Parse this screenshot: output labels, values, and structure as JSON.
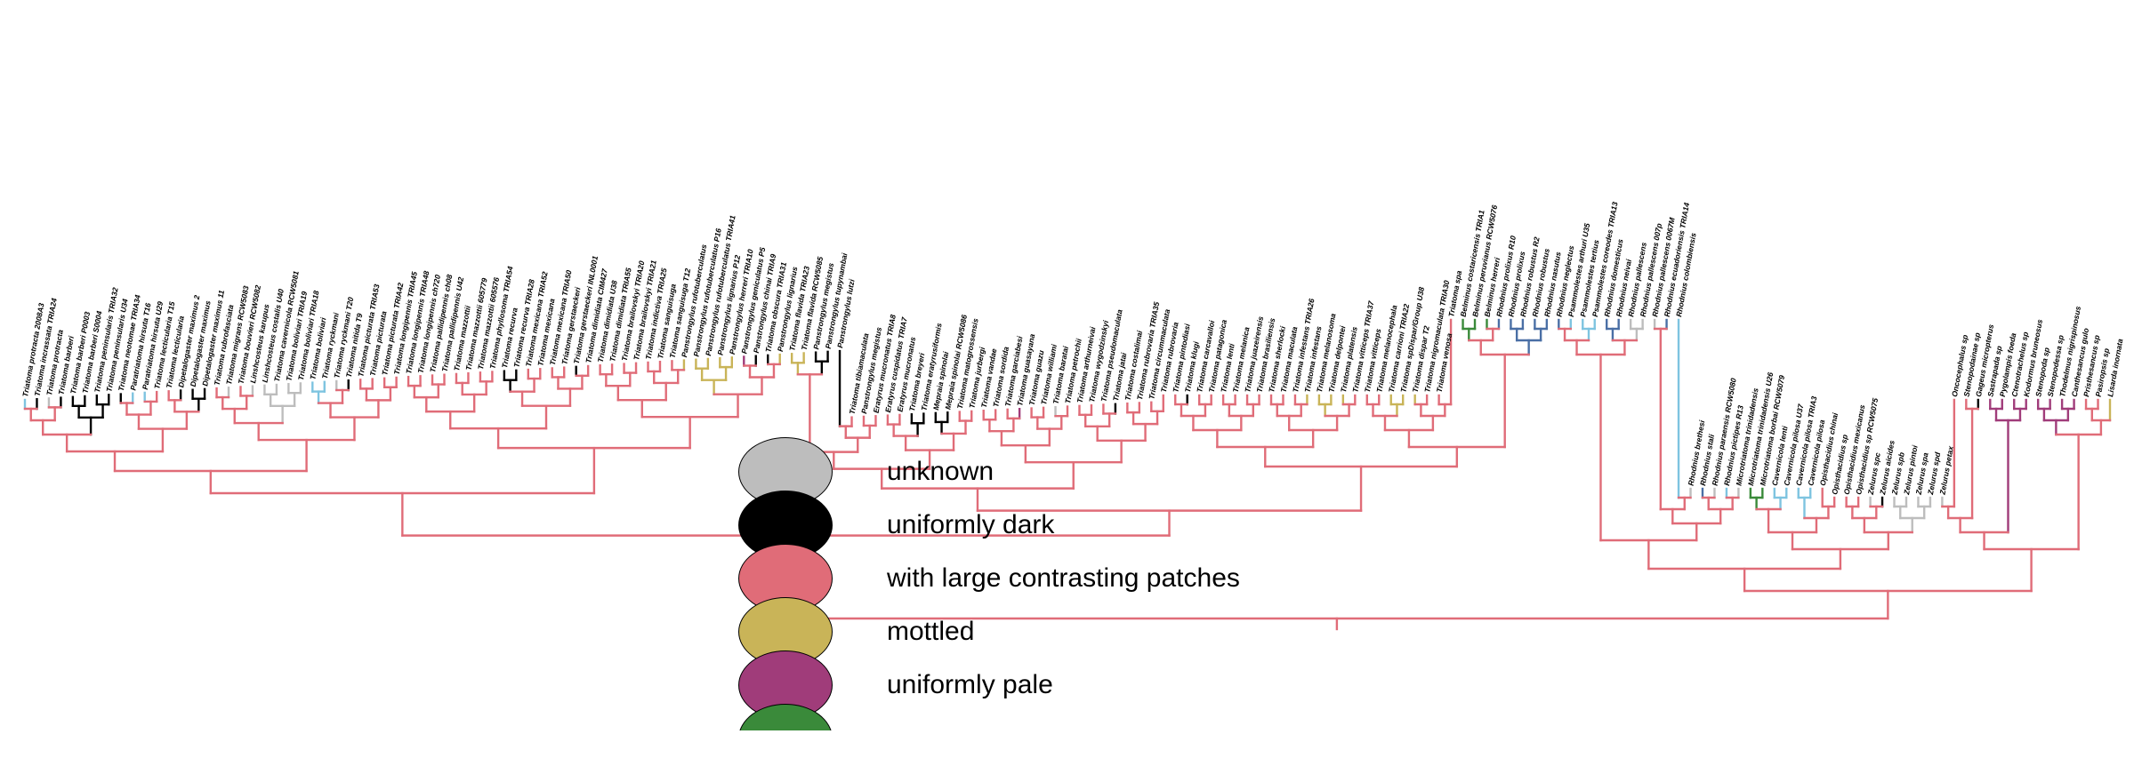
{
  "colors": {
    "unknown": "#bdbdbd",
    "dark": "#000000",
    "patches": "#e06c78",
    "mottled": "#c9b458",
    "pale": "#a03c7a",
    "green": "#3a8a3a",
    "blue": "#4a6fa5",
    "lightblue": "#7ec4e0"
  },
  "legend": [
    {
      "label": "unknown",
      "color": "#bdbdbd"
    },
    {
      "label": "uniformly dark",
      "color": "#000000"
    },
    {
      "label": "with large contrasting patches",
      "color": "#e06c78"
    },
    {
      "label": "mottled",
      "color": "#c9b458"
    },
    {
      "label": "uniformly pale",
      "color": "#a03c7a"
    },
    {
      "label": "",
      "color": "#3a8a3a"
    }
  ],
  "tips": [
    {
      "label": "Triatoma protracta 2008A3",
      "color": "lightblue"
    },
    {
      "label": "Triatoma incrassata TRIA24",
      "color": "dark"
    },
    {
      "label": "Triatoma protracta",
      "color": "unknown"
    },
    {
      "label": "Triatoma barberi",
      "color": "dark"
    },
    {
      "label": "Triatoma barberi P0003",
      "color": "dark"
    },
    {
      "label": "Triatoma barberi S0004",
      "color": "dark"
    },
    {
      "label": "Triatoma peninsularis TRIA32",
      "color": "dark"
    },
    {
      "label": "Triatoma peninsularis U34",
      "color": "dark"
    },
    {
      "label": "Triatoma neotomae TRIA34",
      "color": "dark"
    },
    {
      "label": "Paratriatoma hirsuta T16",
      "color": "lightblue"
    },
    {
      "label": "Paratriatoma hirsuta U29",
      "color": "lightblue"
    },
    {
      "label": "Triatoma lecticularia T15",
      "color": "patches"
    },
    {
      "label": "Triatoma lecticularia",
      "color": "patches"
    },
    {
      "label": "Dipetalogaster maximus 2",
      "color": "dark"
    },
    {
      "label": "Dipetalogaster maximus",
      "color": "dark"
    },
    {
      "label": "Dipetalogaster maximus 11",
      "color": "dark"
    },
    {
      "label": "Triatoma rubrofasciata",
      "color": "patches"
    },
    {
      "label": "Triatoma migrans RCW5083",
      "color": "unknown"
    },
    {
      "label": "Triatoma bouvieri RCW5082",
      "color": "patches"
    },
    {
      "label": "Linshcosteus karupus",
      "color": "unknown"
    },
    {
      "label": "Linshcosteus costalis U40",
      "color": "unknown"
    },
    {
      "label": "Triatoma cavernicola RCW5081",
      "color": "unknown"
    },
    {
      "label": "Triatoma boliviari TRIA19",
      "color": "unknown"
    },
    {
      "label": "Triatoma boliviari TRIA18",
      "color": "unknown"
    },
    {
      "label": "Triatoma boliviari",
      "color": "lightblue"
    },
    {
      "label": "Triatoma ryckmani",
      "color": "lightblue"
    },
    {
      "label": "Triatoma ryckmani T20",
      "color": "unknown"
    },
    {
      "label": "Triatoma nitida T9",
      "color": "dark"
    },
    {
      "label": "Triatoma picturata TRIA53",
      "color": "patches"
    },
    {
      "label": "Triatoma picturata",
      "color": "patches"
    },
    {
      "label": "Triatoma picturata TRIA42",
      "color": "patches"
    },
    {
      "label": "Triatoma longipennis TRIA45",
      "color": "patches"
    },
    {
      "label": "Triatoma longipennis TRIA48",
      "color": "patches"
    },
    {
      "label": "Triatoma longipennis ch720",
      "color": "patches"
    },
    {
      "label": "Triatoma pallidipennis ch08",
      "color": "patches"
    },
    {
      "label": "Triatoma pallidipennis U42",
      "color": "patches"
    },
    {
      "label": "Triatoma mazzottii",
      "color": "patches"
    },
    {
      "label": "Triatoma mazzottii 605779",
      "color": "patches"
    },
    {
      "label": "Triatoma mazzottii 605576",
      "color": "patches"
    },
    {
      "label": "Triatoma phyllosoma TRIA54",
      "color": "patches"
    },
    {
      "label": "Triatoma recurva",
      "color": "dark"
    },
    {
      "label": "Triatoma recurva TRIA28",
      "color": "dark"
    },
    {
      "label": "Triatoma mexicana TRIA52",
      "color": "patches"
    },
    {
      "label": "Triatoma mexicana",
      "color": "patches"
    },
    {
      "label": "Triatoma mexicana TRIA50",
      "color": "patches"
    },
    {
      "label": "Triatoma gerstaeckeri",
      "color": "patches"
    },
    {
      "label": "Triatoma gerstaeckeri INL0001",
      "color": "dark"
    },
    {
      "label": "Triatoma dimidiata CIM427",
      "color": "patches"
    },
    {
      "label": "Triatoma dimidiata U38",
      "color": "patches"
    },
    {
      "label": "Triatoma dimidiata TRIA55",
      "color": "patches"
    },
    {
      "label": "Triatoma brailovskyi TRIA20",
      "color": "patches"
    },
    {
      "label": "Triatoma brailovskyi TRIA21",
      "color": "patches"
    },
    {
      "label": "Triatoma indictiva TRIA25",
      "color": "patches"
    },
    {
      "label": "Triatoma sanguisuga",
      "color": "patches"
    },
    {
      "label": "Triatoma sanguisuga T12",
      "color": "patches"
    },
    {
      "label": "Panstrongylus rufotuberculatus",
      "color": "mottled"
    },
    {
      "label": "Panstrongylus rufotuberculatus P16",
      "color": "mottled"
    },
    {
      "label": "Panstrongylus rufotuberculatus TRIA41",
      "color": "mottled"
    },
    {
      "label": "Panstrongylus lignarius P12",
      "color": "mottled"
    },
    {
      "label": "Panstrongylus herreri TRIA10",
      "color": "mottled"
    },
    {
      "label": "Panstrongylus geniculatus P5",
      "color": "pale"
    },
    {
      "label": "Panstrongylus chinai TRIA9",
      "color": "dark"
    },
    {
      "label": "Triatoma obscura TRIA31",
      "color": "dark"
    },
    {
      "label": "Panstrongylus lignarius",
      "color": "mottled"
    },
    {
      "label": "Triatoma flavida TRIA23",
      "color": "mottled"
    },
    {
      "label": "Triatoma flavida RCW5085",
      "color": "mottled"
    },
    {
      "label": "Panstrongylus megistus",
      "color": "dark"
    },
    {
      "label": "Panstrongylus tupynambai",
      "color": "dark"
    },
    {
      "label": "Panstrongylus lutzi",
      "color": "dark"
    },
    {
      "label": "Triatoma tibiamaculata",
      "color": "patches"
    },
    {
      "label": "Panstrongylus megistus",
      "color": "patches"
    },
    {
      "label": "Eratyrus mucronatus TRIA8",
      "color": "patches"
    },
    {
      "label": "Eratyrus cuspidatus TRIA7",
      "color": "patches"
    },
    {
      "label": "Eratyrus mucronatus",
      "color": "patches"
    },
    {
      "label": "Triatoma breyeri",
      "color": "dark"
    },
    {
      "label": "Triatoma eratyrusiformis",
      "color": "dark"
    },
    {
      "label": "Mepraia spinolai",
      "color": "dark"
    },
    {
      "label": "Mepraia spinolai RCW5086",
      "color": "dark"
    },
    {
      "label": "Triatoma matogrossensis",
      "color": "patches"
    },
    {
      "label": "Triatoma jurbergi",
      "color": "patches"
    },
    {
      "label": "Triatoma vandae",
      "color": "patches"
    },
    {
      "label": "Triatoma sordida",
      "color": "patches"
    },
    {
      "label": "Triatoma garciabesi",
      "color": "patches"
    },
    {
      "label": "Triatoma guasayana",
      "color": "pale"
    },
    {
      "label": "Triatoma guazu",
      "color": "patches"
    },
    {
      "label": "Triatoma williami",
      "color": "patches"
    },
    {
      "label": "Triatoma baratai",
      "color": "unknown"
    },
    {
      "label": "Triatoma petrochii",
      "color": "patches"
    },
    {
      "label": "Triatoma arthurneivai",
      "color": "patches"
    },
    {
      "label": "Triatoma wygodzinskyi",
      "color": "patches"
    },
    {
      "label": "Triatoma pseudomaculata",
      "color": "patches"
    },
    {
      "label": "Triatoma jatai",
      "color": "dark"
    },
    {
      "label": "Triatoma costalimai",
      "color": "patches"
    },
    {
      "label": "Triatoma rubrovaria TRIA35",
      "color": "patches"
    },
    {
      "label": "Triatoma circummaculata",
      "color": "patches"
    },
    {
      "label": "Triatoma rubrovaria",
      "color": "patches"
    },
    {
      "label": "Triatoma pintodiasi",
      "color": "patches"
    },
    {
      "label": "Triatoma klugi",
      "color": "dark"
    },
    {
      "label": "Triatoma carcavalloi",
      "color": "patches"
    },
    {
      "label": "Triatoma patagonica",
      "color": "patches"
    },
    {
      "label": "Triatoma lenti",
      "color": "patches"
    },
    {
      "label": "Triatoma melanica",
      "color": "patches"
    },
    {
      "label": "Triatoma juazeirensis",
      "color": "patches"
    },
    {
      "label": "Triatoma brasiliensis",
      "color": "patches"
    },
    {
      "label": "Triatoma sherlocki",
      "color": "patches"
    },
    {
      "label": "Triatoma maculata",
      "color": "patches"
    },
    {
      "label": "Triatoma infestans TRIA26",
      "color": "patches"
    },
    {
      "label": "Triatoma infestans",
      "color": "mottled"
    },
    {
      "label": "Triatoma melanosoma",
      "color": "mottled"
    },
    {
      "label": "Triatoma delpontei",
      "color": "mottled"
    },
    {
      "label": "Triatoma platensis",
      "color": "mottled"
    },
    {
      "label": "Triatoma vitticeps TRIA37",
      "color": "patches"
    },
    {
      "label": "Triatoma vitticeps",
      "color": "patches"
    },
    {
      "label": "Triatoma melanocephala",
      "color": "patches"
    },
    {
      "label": "Triatoma carrioni TRIA22",
      "color": "mottled"
    },
    {
      "label": "Triatoma spDispar/Group U38",
      "color": "mottled"
    },
    {
      "label": "Triatoma dispar T2",
      "color": "mottled"
    },
    {
      "label": "Triatoma nigromaculata TRIA30",
      "color": "patches"
    },
    {
      "label": "Triatoma venosa",
      "color": "patches"
    },
    {
      "label": "Triatoma spa",
      "color": "patches"
    },
    {
      "label": "Belminus costaricensis TRIA1",
      "color": "green"
    },
    {
      "label": "Belminus peruvianus RCW5076",
      "color": "green"
    },
    {
      "label": "Belminus herreri",
      "color": "green"
    },
    {
      "label": "Rhodnius prolixus R10",
      "color": "blue"
    },
    {
      "label": "Rhodnius prolixus",
      "color": "blue"
    },
    {
      "label": "Rhodnius robustus R2",
      "color": "blue"
    },
    {
      "label": "Rhodnius robustus",
      "color": "blue"
    },
    {
      "label": "Rhodnius nasutus",
      "color": "blue"
    },
    {
      "label": "Rhodnius neglectus",
      "color": "blue"
    },
    {
      "label": "Psammolestes arthuri U35",
      "color": "lightblue"
    },
    {
      "label": "Psammolestes tertius",
      "color": "lightblue"
    },
    {
      "label": "Psammolestes coreodes TRIA13",
      "color": "lightblue"
    },
    {
      "label": "Rhodnius domesticus",
      "color": "blue"
    },
    {
      "label": "Rhodnius neivai",
      "color": "blue"
    },
    {
      "label": "Rhodnius pallescens",
      "color": "unknown"
    },
    {
      "label": "Rhodnius pallescens 007p",
      "color": "unknown"
    },
    {
      "label": "Rhodnius pallescens 0067M",
      "color": "unknown"
    },
    {
      "label": "Rhodnius ecuadoriensis TRIA14",
      "color": "blue"
    },
    {
      "label": "Rhodnius colombiensis",
      "color": "lightblue"
    },
    {
      "label": "Rhodnius brethesi",
      "color": "unknown"
    },
    {
      "label": "Rhodnius stali",
      "color": "blue"
    },
    {
      "label": "Rhodnius paraensis RCW5080",
      "color": "unknown"
    },
    {
      "label": "Rhodnius pictipes R13",
      "color": "lightblue"
    },
    {
      "label": "Microtriatoma trinidadensis",
      "color": "unknown"
    },
    {
      "label": "Microtriatoma trinidadensis U26",
      "color": "green"
    },
    {
      "label": "Microtriatoma borbai RCW5079",
      "color": "green"
    },
    {
      "label": "Cavernicola lenti",
      "color": "lightblue"
    },
    {
      "label": "Cavernicola pilosa U37",
      "color": "lightblue"
    },
    {
      "label": "Cavernicola pilosa TRIA3",
      "color": "lightblue"
    },
    {
      "label": "Cavernicola pilosa",
      "color": "lightblue"
    },
    {
      "label": "Opisthacidius chinai",
      "color": "patches"
    },
    {
      "label": "Opisthacidius sp",
      "color": "patches"
    },
    {
      "label": "Opisthacidius mexicanus",
      "color": "patches"
    },
    {
      "label": "Opisthacidius sp RCW5075",
      "color": "patches"
    },
    {
      "label": "Zelurus spc",
      "color": "unknown"
    },
    {
      "label": "Zelurus aicides",
      "color": "dark"
    },
    {
      "label": "Zelurus spb",
      "color": "unknown"
    },
    {
      "label": "Zelurus pintoi",
      "color": "unknown"
    },
    {
      "label": "Zelurus spa",
      "color": "unknown"
    },
    {
      "label": "Zelurus spd",
      "color": "unknown"
    },
    {
      "label": "Zelurus petax",
      "color": "unknown"
    },
    {
      "label": "Oncocephalus sp",
      "color": "patches"
    },
    {
      "label": "Stenopodainae sp",
      "color": "patches"
    },
    {
      "label": "Gageus micropterus",
      "color": "dark"
    },
    {
      "label": "Sastrapada sp",
      "color": "pale"
    },
    {
      "label": "Pygolampis foeda",
      "color": "pale"
    },
    {
      "label": "Ctenotrachelus sp",
      "color": "pale"
    },
    {
      "label": "Kodormus bruneosus",
      "color": "pale"
    },
    {
      "label": "Stenopoda sp",
      "color": "pale"
    },
    {
      "label": "Stenopodessa sp",
      "color": "pale"
    },
    {
      "label": "Thodelmus nigrispinosus",
      "color": "pale"
    },
    {
      "label": "Canthesancus gulo",
      "color": "pale"
    },
    {
      "label": "Pristhesancus sp",
      "color": "patches"
    },
    {
      "label": "Pasiropsis sp",
      "color": "patches"
    },
    {
      "label": "Lisarda inornata",
      "color": "mottled"
    }
  ]
}
